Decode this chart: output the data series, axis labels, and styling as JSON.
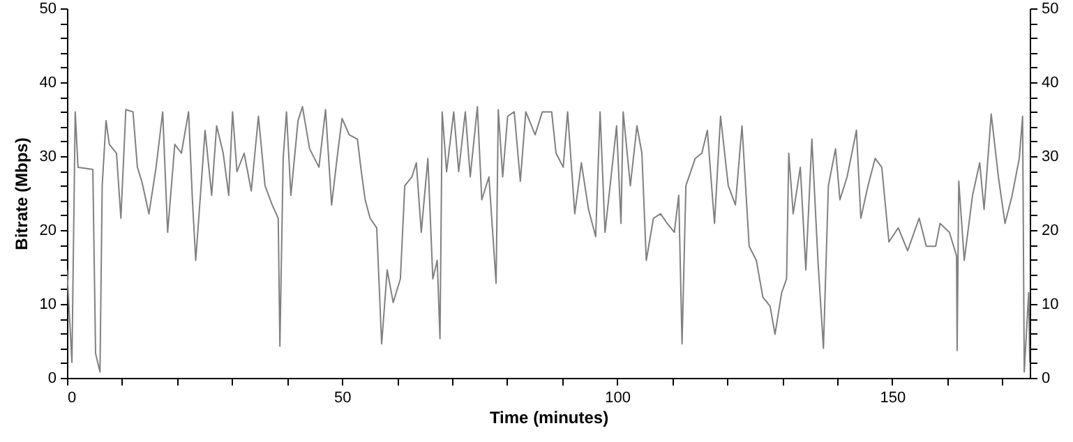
{
  "chart_data": {
    "type": "line",
    "xlabel": "Time (minutes)",
    "ylabel": "Bitrate (Mbps)",
    "x": [
      0,
      0.9,
      1.5,
      2.0,
      4.7,
      5.2,
      6.0,
      6.4,
      7.1,
      7.7,
      9.0,
      9.8,
      10.7,
      12.0,
      12.8,
      13.6,
      14.9,
      16.2,
      17.4,
      18.3,
      19.6,
      20.8,
      22.1,
      22.8,
      23.4,
      24.2,
      25.1,
      26.3,
      27.2,
      28.4,
      29.4,
      30.1,
      30.9,
      32.2,
      33.5,
      34.8,
      36.0,
      37.3,
      38.4,
      38.7,
      39.3,
      39.9,
      40.7,
      42.0,
      42.8,
      44.1,
      45.8,
      47.0,
      48.1,
      49.2,
      50.0,
      51.3,
      52.8,
      53.4,
      54.2,
      55.1,
      56.3,
      57.2,
      58.2,
      59.3,
      60.6,
      61.4,
      62.7,
      63.5,
      64.4,
      65.6,
      66.5,
      67.3,
      67.8,
      68.2,
      69.0,
      70.3,
      71.2,
      72.4,
      73.3,
      74.6,
      75.4,
      76.7,
      78.0,
      78.4,
      79.2,
      80.1,
      81.3,
      82.4,
      83.4,
      85.1,
      86.4,
      88.1,
      88.9,
      90.2,
      91.0,
      92.3,
      93.5,
      94.8,
      96.1,
      96.9,
      97.8,
      99.0,
      99.9,
      100.7,
      101.1,
      102.4,
      103.6,
      104.5,
      105.3,
      106.6,
      107.9,
      109.1,
      110.4,
      111.2,
      111.8,
      112.5,
      114.2,
      115.4,
      116.4,
      117.7,
      118.8,
      120.2,
      121.5,
      122.7,
      124.0,
      125.3,
      126.5,
      127.8,
      128.7,
      129.9,
      130.8,
      131.2,
      132.0,
      133.3,
      134.3,
      135.4,
      136.5,
      137.5,
      138.4,
      139.7,
      140.5,
      141.8,
      143.5,
      144.3,
      145.6,
      146.9,
      148.1,
      149.4,
      151.1,
      152.8,
      154.9,
      156.2,
      157.9,
      158.7,
      160.4,
      161.7,
      161.8,
      162.1,
      163.1,
      164.6,
      165.9,
      166.7,
      168.0,
      169.3,
      170.5,
      171.8,
      173.1,
      173.7,
      174.0,
      174.8,
      175
    ],
    "series": [
      {
        "color": "#808080",
        "values": [
          14.6,
          2.1,
          36,
          28.5,
          28.2,
          3.3,
          0.8,
          26,
          34.8,
          31.6,
          30.4,
          21.6,
          36.3,
          36,
          28.5,
          26.6,
          22.2,
          28.5,
          36,
          19.7,
          31.6,
          30.4,
          36,
          24.1,
          15.9,
          24.1,
          33.5,
          24.7,
          34.1,
          30.4,
          24.7,
          36,
          27.9,
          30.4,
          25.3,
          35.4,
          26,
          23.4,
          21.6,
          4.3,
          29.7,
          36,
          24.7,
          34.8,
          36.7,
          31,
          28.5,
          36.3,
          23.4,
          30.4,
          35.1,
          32.9,
          32.3,
          28.5,
          24.1,
          21.6,
          20.3,
          4.6,
          14.6,
          10.2,
          13.4,
          26,
          27.2,
          29.1,
          19.7,
          29.7,
          13.4,
          15.9,
          5.3,
          36,
          27.9,
          36,
          27.9,
          36,
          27.2,
          36.7,
          24.1,
          27.2,
          12.8,
          36.3,
          27.2,
          35.4,
          36,
          26.6,
          36,
          32.9,
          36,
          36,
          30.4,
          28.5,
          36,
          22.2,
          29.1,
          22.8,
          19.1,
          36,
          19.7,
          27.9,
          34.1,
          20.9,
          36,
          26,
          34.1,
          30.4,
          15.9,
          21.6,
          22.2,
          20.9,
          19.7,
          24.7,
          4.6,
          26,
          29.7,
          30.4,
          33.5,
          20.9,
          35.4,
          26,
          23.4,
          34.1,
          17.8,
          15.9,
          10.9,
          9.7,
          5.9,
          11.5,
          13.4,
          30.4,
          22.2,
          28.5,
          14.6,
          32.3,
          15.9,
          4.0,
          26,
          31,
          24.1,
          27.2,
          33.5,
          21.6,
          26,
          29.7,
          28.5,
          18.4,
          20.3,
          17.2,
          21.6,
          17.8,
          17.8,
          20.9,
          19.7,
          16.5,
          3.7,
          26.6,
          15.9,
          24.7,
          29.1,
          22.8,
          35.7,
          27.2,
          20.9,
          24.7,
          29.7,
          35.4,
          0.8,
          11.5,
          2.1
        ]
      }
    ],
    "xlim": [
      0,
      175
    ],
    "xticks": [
      0,
      {
        "value": 10,
        "label": null
      },
      {
        "value": 20,
        "label": null
      },
      {
        "value": 30,
        "label": null
      },
      {
        "value": 40,
        "label": null
      },
      50,
      {
        "value": 60,
        "label": null
      },
      {
        "value": 70,
        "label": null
      },
      {
        "value": 80,
        "label": null
      },
      {
        "value": 90,
        "label": null
      },
      100,
      {
        "value": 110,
        "label": null
      },
      {
        "value": 120,
        "label": null
      },
      {
        "value": 130,
        "label": null
      },
      {
        "value": 140,
        "label": null
      },
      150,
      {
        "value": 160,
        "label": null
      },
      {
        "value": 170,
        "label": null
      }
    ],
    "ylim": [
      0,
      50
    ],
    "yticks": [
      0,
      {
        "value": 2,
        "label": null
      },
      {
        "value": 4,
        "label": null
      },
      {
        "value": 6,
        "label": null
      },
      {
        "value": 8,
        "label": null
      },
      10,
      {
        "value": 12,
        "label": null
      },
      {
        "value": 14,
        "label": null
      },
      {
        "value": 16,
        "label": null
      },
      {
        "value": 18,
        "label": null
      },
      20,
      {
        "value": 22,
        "label": null
      },
      {
        "value": 24,
        "label": null
      },
      {
        "value": 26,
        "label": null
      },
      {
        "value": 28,
        "label": null
      },
      30,
      {
        "value": 32,
        "label": null
      },
      {
        "value": 34,
        "label": null
      },
      {
        "value": 36,
        "label": null
      },
      {
        "value": 38,
        "label": null
      },
      40,
      {
        "value": 42,
        "label": null
      },
      {
        "value": 44,
        "label": null
      },
      {
        "value": 46,
        "label": null
      },
      {
        "value": 48,
        "label": null
      },
      50
    ],
    "y2lim": [
      0,
      50
    ],
    "y2ticks": [
      0,
      {
        "value": 2,
        "label": null
      },
      {
        "value": 4,
        "label": null
      },
      {
        "value": 6,
        "label": null
      },
      {
        "value": 8,
        "label": null
      },
      10,
      {
        "value": 12,
        "label": null
      },
      {
        "value": 14,
        "label": null
      },
      {
        "value": 16,
        "label": null
      },
      {
        "value": 18,
        "label": null
      },
      20,
      {
        "value": 22,
        "label": null
      },
      {
        "value": 24,
        "label": null
      },
      {
        "value": 26,
        "label": null
      },
      {
        "value": 28,
        "label": null
      },
      30,
      {
        "value": 32,
        "label": null
      },
      {
        "value": 34,
        "label": null
      },
      {
        "value": 36,
        "label": null
      },
      {
        "value": 38,
        "label": null
      },
      40,
      {
        "value": 42,
        "label": null
      },
      {
        "value": 44,
        "label": null
      },
      {
        "value": 46,
        "label": null
      },
      {
        "value": 48,
        "label": null
      },
      50
    ],
    "grid": false,
    "marker": "none",
    "line_style": "solid"
  }
}
